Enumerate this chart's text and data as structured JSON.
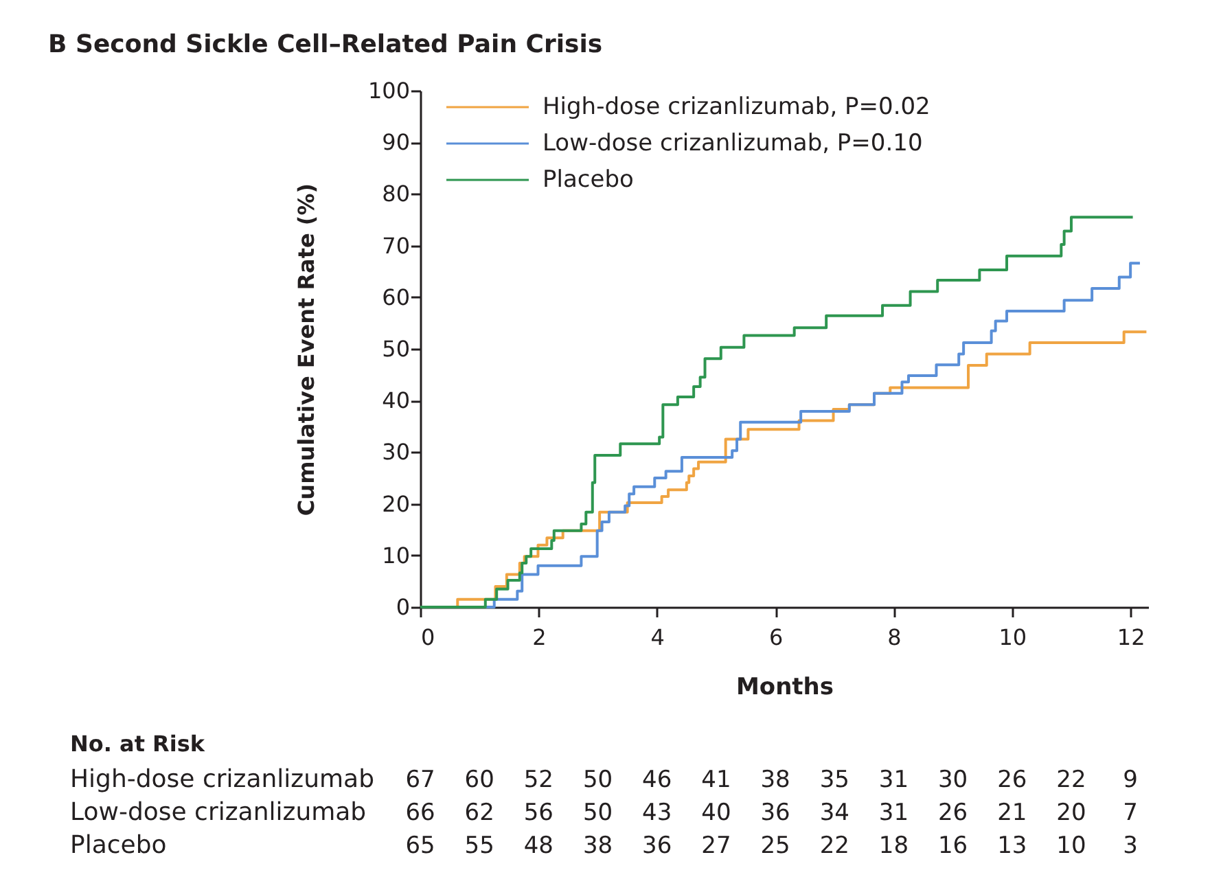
{
  "chart_data": {
    "type": "step",
    "title": "B  Second Sickle Cell–Related Pain Crisis",
    "xlabel": "Months",
    "ylabel": "Cumulative Event Rate (%)",
    "xlim": [
      0,
      12.3
    ],
    "xticks": [
      0,
      2,
      4,
      6,
      8,
      10,
      12
    ],
    "ylim": [
      0,
      100
    ],
    "yticks": [
      0,
      10,
      20,
      30,
      40,
      50,
      60,
      70,
      80,
      90,
      100
    ],
    "grid": false,
    "legend": "top left",
    "series": [
      {
        "name": "High-dose crizanlizumab, P=0.02",
        "color": "#f0a442",
        "x": [
          0,
          0.63,
          1.27,
          1.46,
          1.68,
          1.76,
          1.99,
          2.14,
          2.41,
          3.03,
          3.5,
          4.08,
          4.19,
          4.5,
          4.54,
          4.62,
          4.7,
          5.16,
          5.54,
          6.4,
          6.98,
          7.25,
          7.67,
          7.94,
          9.26,
          9.57,
          10.3,
          11.89,
          12.27
        ],
        "values": [
          0,
          1.5,
          4.0,
          6.3,
          8.5,
          9.8,
          12.0,
          13.4,
          14.8,
          18.4,
          20.2,
          21.4,
          22.7,
          24.1,
          25.4,
          26.8,
          28.1,
          32.5,
          34.4,
          36.1,
          38.3,
          39.2,
          41.4,
          42.5,
          46.8,
          49.0,
          51.2,
          53.3,
          53.3
        ]
      },
      {
        "name": "Low-dose crizanlizumab, P=0.10",
        "color": "#5a8fd8",
        "x": [
          0,
          1.25,
          1.64,
          1.72,
          1.99,
          2.72,
          2.99,
          3.07,
          3.19,
          3.46,
          3.53,
          3.61,
          3.96,
          4.15,
          4.42,
          5.27,
          5.35,
          5.41,
          6.43,
          7.25,
          7.67,
          8.14,
          8.25,
          8.72,
          9.1,
          9.18,
          9.65,
          9.72,
          9.91,
          10.88,
          11.35,
          11.81,
          12.0,
          12.16
        ],
        "values": [
          0,
          1.5,
          3.1,
          6.3,
          8.0,
          9.8,
          14.8,
          16.5,
          18.4,
          19.6,
          21.9,
          23.3,
          25.0,
          26.3,
          29.0,
          30.3,
          32.5,
          35.8,
          37.9,
          39.2,
          41.4,
          43.6,
          44.8,
          46.9,
          49.0,
          51.2,
          53.5,
          55.4,
          57.3,
          59.4,
          61.7,
          63.9,
          66.6,
          66.6
        ]
      },
      {
        "name": "Placebo",
        "color": "#2e9650",
        "x": [
          0,
          1.1,
          1.29,
          1.48,
          1.68,
          1.72,
          1.79,
          1.87,
          2.22,
          2.26,
          2.72,
          2.8,
          2.91,
          2.95,
          3.38,
          4.04,
          4.1,
          4.35,
          4.62,
          4.73,
          4.81,
          5.08,
          5.47,
          6.32,
          6.86,
          7.81,
          8.28,
          8.74,
          9.45,
          9.91,
          10.83,
          10.88,
          11.0,
          12.04
        ],
        "values": [
          0,
          1.5,
          3.5,
          5.2,
          6.6,
          8.5,
          9.8,
          11.3,
          12.9,
          14.8,
          16.1,
          18.4,
          24.1,
          29.4,
          31.6,
          32.9,
          39.2,
          40.7,
          42.7,
          44.5,
          48.1,
          50.3,
          52.6,
          54.1,
          56.4,
          58.4,
          61.1,
          63.3,
          65.3,
          68.0,
          70.2,
          72.8,
          75.5,
          75.5
        ]
      }
    ],
    "annotations": [
      "No. at Risk",
      "High-dose crizanlizumab",
      "67 60 52 50 46 41 38 35 31 30 26 22 9",
      "Low-dose crizanlizumab",
      "66 62 56 50 43 40 36 34 31 26 21 20 7",
      "Placebo",
      "65 55 48 38 36 27 25 22 18 16 13 10 3"
    ]
  }
}
